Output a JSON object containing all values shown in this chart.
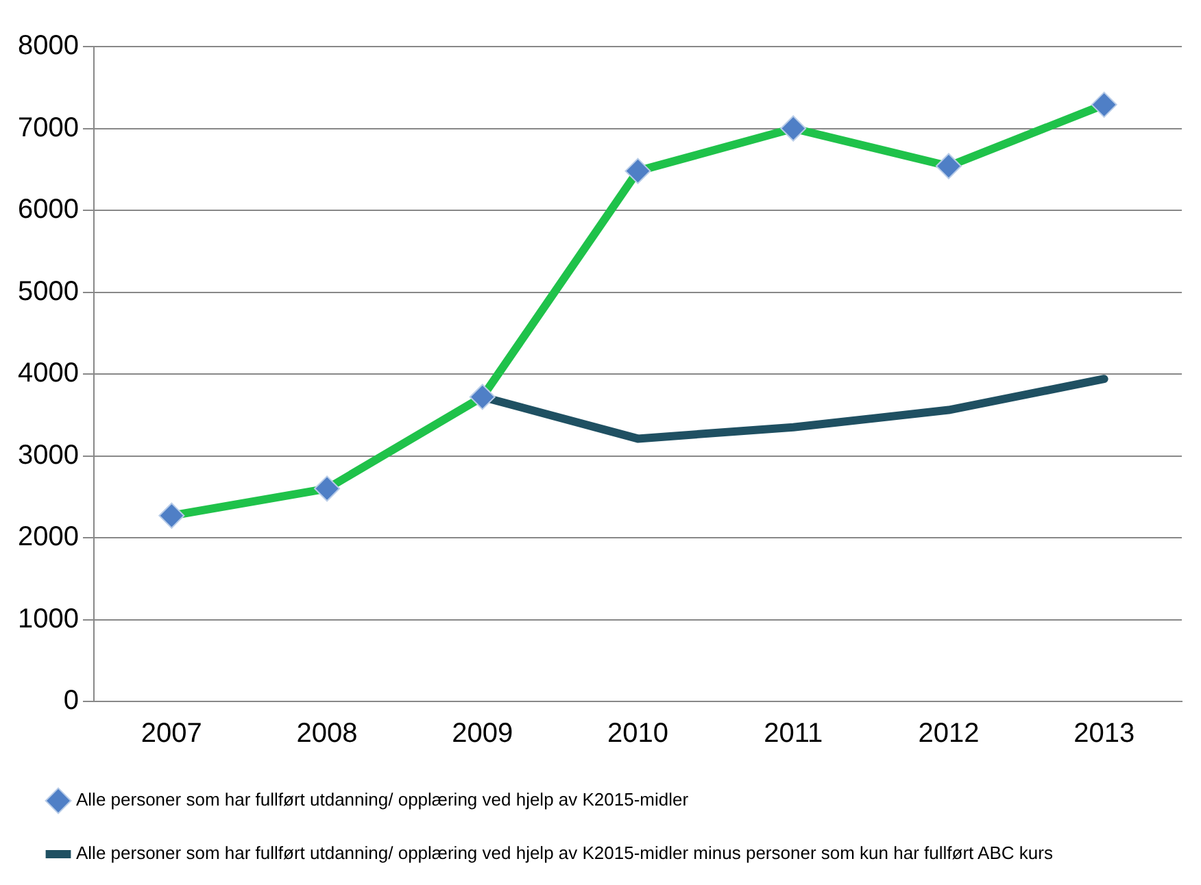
{
  "chart_data": {
    "type": "line",
    "categories": [
      "2007",
      "2008",
      "2009",
      "2010",
      "2011",
      "2012",
      "2013"
    ],
    "series": [
      {
        "name": "Alle personer som har fullført utdanning/ opplæring ved hjelp av K2015-midler",
        "color": "#1fc24a",
        "marker": "diamond",
        "values": [
          2270,
          2600,
          3720,
          6480,
          7000,
          6540,
          7290
        ]
      },
      {
        "name": "Alle personer som har fullført utdanning/ opplæring ved hjelp av K2015-midler minus personer som kun har fullført ABC kurs",
        "color": "#1f5062",
        "marker": "none",
        "values": [
          null,
          null,
          3720,
          3210,
          3350,
          3560,
          3940
        ]
      }
    ],
    "ylim": [
      0,
      8000
    ],
    "yticks": [
      0,
      1000,
      2000,
      3000,
      4000,
      5000,
      6000,
      7000,
      8000
    ],
    "grid": "y",
    "legend": "bottom",
    "line_style": "solid"
  }
}
